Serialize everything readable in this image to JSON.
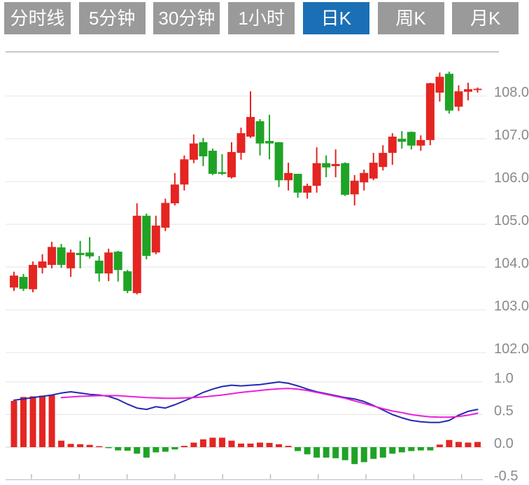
{
  "toolbar": {
    "tabs": [
      {
        "key": "timeline",
        "label": "分时线",
        "active": false
      },
      {
        "key": "5min",
        "label": "5分钟",
        "active": false
      },
      {
        "key": "30min",
        "label": "30分钟",
        "active": false
      },
      {
        "key": "1hour",
        "label": "1小时",
        "active": false
      },
      {
        "key": "daily-k",
        "label": "日K",
        "active": true
      },
      {
        "key": "weekly-k",
        "label": "周K",
        "active": false
      },
      {
        "key": "monthly-k",
        "label": "月K",
        "active": false
      }
    ]
  },
  "colors": {
    "up": "#e42522",
    "down": "#1fa326",
    "dif_line": "#2328b4",
    "dea_line": "#ea1fd7",
    "grid": "#e4e4e4",
    "border": "#c8c8c8",
    "zero_line": "#cfcfcf",
    "axis_line": "#bdbdbd",
    "axis_label": "#8a8a8a",
    "tab_bg": "#9a9a9a",
    "tab_active_bg": "#1b6fb5",
    "tab_text": "#ffffff"
  },
  "price_axis": {
    "labels": [
      "108.0",
      "107.0",
      "106.0",
      "105.0",
      "104.0",
      "103.0",
      "102.0"
    ],
    "values": [
      108.0,
      107.0,
      106.0,
      105.0,
      104.0,
      103.0,
      102.0
    ],
    "max": 108.0,
    "min": 102.0,
    "step": 1.0
  },
  "macd_axis": {
    "labels": [
      "1.0",
      "0.5",
      "0.0",
      "-0.5"
    ],
    "values": [
      1.0,
      0.5,
      0.0,
      -0.5
    ],
    "max": 1.0,
    "min": -0.5,
    "step": 0.5
  },
  "chart_data": [
    {
      "type": "candlestick",
      "title": "",
      "xlabel": "",
      "ylabel": "",
      "ylim": [
        102.0,
        108.6
      ],
      "grid": "horizontal",
      "up_color_meaning": "rise (Chinese convention, red)",
      "down_color_meaning": "fall (green)",
      "candles_ohlc": [
        [
          103.52,
          103.89,
          103.44,
          103.8
        ],
        [
          103.77,
          103.84,
          103.44,
          103.49
        ],
        [
          103.48,
          104.13,
          103.41,
          104.05
        ],
        [
          103.98,
          104.3,
          103.85,
          104.13
        ],
        [
          104.05,
          104.59,
          103.97,
          104.47
        ],
        [
          104.46,
          104.54,
          103.98,
          104.05
        ],
        [
          103.97,
          104.41,
          103.77,
          104.34
        ],
        [
          104.33,
          104.61,
          103.97,
          104.28
        ],
        [
          104.34,
          104.7,
          104.2,
          104.25
        ],
        [
          104.15,
          104.26,
          103.66,
          103.85
        ],
        [
          103.85,
          104.43,
          103.67,
          104.34
        ],
        [
          104.36,
          104.38,
          103.66,
          103.93
        ],
        [
          103.9,
          103.93,
          103.39,
          103.44
        ],
        [
          103.39,
          105.49,
          103.36,
          105.2
        ],
        [
          105.2,
          105.25,
          104.18,
          104.26
        ],
        [
          104.34,
          105.2,
          104.3,
          104.97
        ],
        [
          104.92,
          105.6,
          104.84,
          105.5
        ],
        [
          105.49,
          106.2,
          105.44,
          105.93
        ],
        [
          105.93,
          106.61,
          105.79,
          106.52
        ],
        [
          106.51,
          107.1,
          106.43,
          106.89
        ],
        [
          106.92,
          107.02,
          106.36,
          106.59
        ],
        [
          106.72,
          106.77,
          106.15,
          106.18
        ],
        [
          106.22,
          106.64,
          106.15,
          106.18
        ],
        [
          106.1,
          106.92,
          106.07,
          106.69
        ],
        [
          106.67,
          107.26,
          106.51,
          107.13
        ],
        [
          107.05,
          108.11,
          107.02,
          107.51
        ],
        [
          107.41,
          107.46,
          106.61,
          106.89
        ],
        [
          106.95,
          107.56,
          106.52,
          106.89
        ],
        [
          106.92,
          106.92,
          105.87,
          106.03
        ],
        [
          106.03,
          106.44,
          105.79,
          106.2
        ],
        [
          106.18,
          106.18,
          105.62,
          105.74
        ],
        [
          105.74,
          105.95,
          105.6,
          105.9
        ],
        [
          105.9,
          106.8,
          105.74,
          106.43
        ],
        [
          106.43,
          106.61,
          106.1,
          106.33
        ],
        [
          106.36,
          106.75,
          106.1,
          106.41
        ],
        [
          106.43,
          106.45,
          105.66,
          105.69
        ],
        [
          105.7,
          106.15,
          105.44,
          106.02
        ],
        [
          105.98,
          106.28,
          105.79,
          106.2
        ],
        [
          106.07,
          106.67,
          106.03,
          106.44
        ],
        [
          106.34,
          106.85,
          106.26,
          106.67
        ],
        [
          106.67,
          107.13,
          106.39,
          107.05
        ],
        [
          107.0,
          107.18,
          106.77,
          106.93
        ],
        [
          107.16,
          107.17,
          106.75,
          106.84
        ],
        [
          106.84,
          107.08,
          106.72,
          106.97
        ],
        [
          106.97,
          108.31,
          106.85,
          108.3
        ],
        [
          108.08,
          108.55,
          107.87,
          108.45
        ],
        [
          108.52,
          108.57,
          107.59,
          107.66
        ],
        [
          107.75,
          108.25,
          107.65,
          108.11
        ],
        [
          108.1,
          108.31,
          107.9,
          108.16
        ],
        [
          108.14,
          108.2,
          108.08,
          108.17
        ]
      ]
    },
    {
      "type": "macd",
      "title": "",
      "ylim": [
        -0.5,
        1.0
      ],
      "grid": "horizontal",
      "histogram": [
        0.71,
        0.77,
        0.78,
        0.79,
        0.8,
        0.1,
        0.05,
        0.045,
        0.035,
        0.015,
        -0.015,
        -0.05,
        -0.055,
        -0.1,
        -0.16,
        -0.08,
        -0.07,
        -0.035,
        0.02,
        0.07,
        0.12,
        0.145,
        0.145,
        0.1,
        0.055,
        0.055,
        0.07,
        0.065,
        0.045,
        0.02,
        -0.06,
        -0.11,
        -0.16,
        -0.16,
        -0.17,
        -0.2,
        -0.26,
        -0.23,
        -0.18,
        -0.16,
        -0.1,
        -0.08,
        -0.06,
        -0.05,
        -0.05,
        0.04,
        0.11,
        0.08,
        0.07,
        0.08
      ],
      "series": [
        {
          "name": "DIF",
          "color_key": "dif_line",
          "values": [
            0.72,
            0.74,
            0.76,
            0.78,
            0.8,
            0.83,
            0.85,
            0.83,
            0.81,
            0.8,
            0.78,
            0.73,
            0.66,
            0.6,
            0.58,
            0.62,
            0.6,
            0.65,
            0.71,
            0.77,
            0.84,
            0.89,
            0.93,
            0.95,
            0.94,
            0.95,
            0.96,
            0.98,
            1.0,
            0.98,
            0.94,
            0.89,
            0.85,
            0.82,
            0.79,
            0.76,
            0.74,
            0.7,
            0.64,
            0.57,
            0.5,
            0.45,
            0.41,
            0.39,
            0.38,
            0.38,
            0.41,
            0.49,
            0.55,
            0.58
          ]
        },
        {
          "name": "DEA",
          "color_key": "dea_line",
          "values": [
            null,
            null,
            null,
            null,
            null,
            0.76,
            0.77,
            0.78,
            0.785,
            0.79,
            0.79,
            0.79,
            0.78,
            0.77,
            0.76,
            0.755,
            0.75,
            0.75,
            0.755,
            0.76,
            0.77,
            0.785,
            0.8,
            0.82,
            0.84,
            0.855,
            0.87,
            0.885,
            0.895,
            0.9,
            0.89,
            0.87,
            0.84,
            0.81,
            0.78,
            0.75,
            0.71,
            0.67,
            0.63,
            0.59,
            0.555,
            0.53,
            0.5,
            0.48,
            0.465,
            0.46,
            0.46,
            0.47,
            0.49,
            0.52
          ]
        }
      ],
      "x_axis": {
        "tick_count": 10,
        "labels_visible": false
      }
    }
  ]
}
